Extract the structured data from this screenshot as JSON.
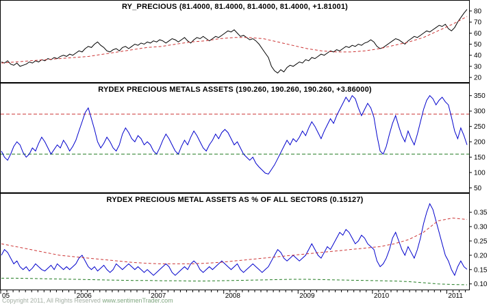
{
  "chart_data": [
    {
      "type": "line",
      "title": "RY_PRECIOUS (81.4000, 81.4000, 81.4000, 81.4000, +1.81001)",
      "ylim": [
        17,
        88
      ],
      "grid": false,
      "yticks": [
        {
          "v": 80,
          "label": "80"
        },
        {
          "v": 70,
          "label": "70"
        },
        {
          "v": 60,
          "label": "60"
        },
        {
          "v": 50,
          "label": "50"
        },
        {
          "v": 40,
          "label": "40"
        },
        {
          "v": 30,
          "label": "30"
        },
        {
          "v": 20,
          "label": "20"
        }
      ],
      "series": [
        {
          "name": "ry-precious-close",
          "color": "#000000",
          "dash": "solid",
          "values": [
            34,
            33,
            35,
            32,
            31,
            33,
            30,
            31,
            32,
            34,
            33,
            35,
            34,
            36,
            35,
            37,
            36,
            38,
            37,
            39,
            40,
            39,
            41,
            40,
            42,
            44,
            43,
            46,
            48,
            47,
            50,
            52,
            49,
            47,
            44,
            43,
            45,
            46,
            44,
            47,
            48,
            46,
            48,
            50,
            49,
            51,
            50,
            52,
            51,
            53,
            52,
            54,
            53,
            51,
            53,
            55,
            54,
            52,
            54,
            56,
            53,
            51,
            54,
            56,
            55,
            57,
            55,
            53,
            55,
            57,
            56,
            58,
            60,
            62,
            61,
            63,
            60,
            57,
            58,
            56,
            54,
            55,
            53,
            50,
            46,
            42,
            38,
            30,
            26,
            24,
            27,
            25,
            29,
            31,
            30,
            32,
            34,
            33,
            36,
            35,
            38,
            37,
            39,
            41,
            40,
            42,
            44,
            43,
            45,
            44,
            46,
            48,
            47,
            49,
            48,
            50,
            49,
            51,
            52,
            54,
            52,
            48,
            46,
            47,
            49,
            51,
            53,
            55,
            54,
            52,
            50,
            53,
            55,
            57,
            56,
            58,
            60,
            62,
            61,
            63,
            65,
            67,
            66,
            68,
            64,
            62,
            65,
            70,
            74,
            78,
            81.4
          ]
        },
        {
          "name": "moving-average",
          "color": "#cc3333",
          "dash": "dashed",
          "values": [
            33,
            34,
            35,
            36,
            37,
            38,
            39,
            41,
            43,
            45,
            47,
            48,
            50,
            52,
            53,
            55,
            56,
            56,
            55,
            52,
            49,
            46,
            44,
            43,
            43,
            44,
            46,
            49,
            52,
            56,
            62,
            68,
            75
          ]
        }
      ]
    },
    {
      "type": "line",
      "title": "RYDEX PRECIOUS METALS ASSETS (190.260, 190.260, 190.260, +3.86000)",
      "ylim": [
        40,
        385
      ],
      "grid": false,
      "yticks": [
        {
          "v": 350,
          "label": "350"
        },
        {
          "v": 300,
          "label": "300"
        },
        {
          "v": 250,
          "label": "250"
        },
        {
          "v": 200,
          "label": "200"
        },
        {
          "v": 150,
          "label": "150"
        },
        {
          "v": 100,
          "label": "100"
        },
        {
          "v": 50,
          "label": "50"
        }
      ],
      "hlines": [
        {
          "name": "upper-threshold",
          "value": 290,
          "color": "#cc3333"
        },
        {
          "name": "lower-threshold",
          "value": 160,
          "color": "#1f7a1f"
        }
      ],
      "series": [
        {
          "name": "rydex-precious-metals-assets",
          "color": "#0000cc",
          "dash": "solid",
          "values": [
            170,
            150,
            140,
            160,
            185,
            200,
            190,
            165,
            150,
            160,
            180,
            170,
            195,
            215,
            200,
            180,
            160,
            175,
            190,
            180,
            205,
            190,
            170,
            185,
            205,
            235,
            265,
            295,
            310,
            275,
            240,
            200,
            180,
            195,
            215,
            200,
            180,
            170,
            190,
            225,
            245,
            230,
            210,
            200,
            220,
            210,
            190,
            200,
            190,
            170,
            160,
            180,
            205,
            225,
            210,
            190,
            170,
            160,
            185,
            205,
            190,
            215,
            235,
            220,
            200,
            180,
            170,
            190,
            205,
            225,
            210,
            230,
            240,
            230,
            210,
            190,
            200,
            180,
            160,
            150,
            140,
            150,
            130,
            118,
            108,
            98,
            95,
            110,
            125,
            145,
            165,
            185,
            205,
            190,
            210,
            200,
            215,
            235,
            220,
            245,
            265,
            250,
            230,
            210,
            235,
            255,
            275,
            260,
            285,
            305,
            325,
            345,
            330,
            350,
            340,
            310,
            285,
            305,
            325,
            310,
            280,
            220,
            170,
            160,
            185,
            225,
            260,
            285,
            250,
            220,
            200,
            235,
            210,
            190,
            225,
            265,
            305,
            335,
            350,
            340,
            320,
            335,
            345,
            330,
            320,
            280,
            235,
            210,
            245,
            220,
            190
          ]
        }
      ]
    },
    {
      "type": "line",
      "title": "RYDEX PRECIOUS METAL ASSETS AS % OF ALL SECTORS (0.15127)",
      "ylim": [
        0.085,
        0.41
      ],
      "grid": false,
      "yticks": [
        {
          "v": 0.35,
          "label": "0.35"
        },
        {
          "v": 0.3,
          "label": "0.30"
        },
        {
          "v": 0.25,
          "label": "0.25"
        },
        {
          "v": 0.2,
          "label": "0.20"
        },
        {
          "v": 0.15,
          "label": "0.15"
        },
        {
          "v": 0.1,
          "label": "0.10"
        }
      ],
      "series": [
        {
          "name": "pct-of-all-sectors",
          "color": "#0000cc",
          "dash": "solid",
          "values": [
            0.2,
            0.22,
            0.21,
            0.19,
            0.17,
            0.18,
            0.16,
            0.15,
            0.16,
            0.145,
            0.155,
            0.17,
            0.16,
            0.15,
            0.145,
            0.155,
            0.165,
            0.15,
            0.17,
            0.16,
            0.15,
            0.16,
            0.15,
            0.16,
            0.17,
            0.19,
            0.2,
            0.18,
            0.16,
            0.15,
            0.16,
            0.145,
            0.155,
            0.165,
            0.15,
            0.14,
            0.15,
            0.17,
            0.16,
            0.15,
            0.16,
            0.17,
            0.16,
            0.15,
            0.16,
            0.15,
            0.14,
            0.15,
            0.14,
            0.13,
            0.14,
            0.15,
            0.16,
            0.17,
            0.16,
            0.14,
            0.13,
            0.14,
            0.15,
            0.16,
            0.15,
            0.17,
            0.18,
            0.17,
            0.15,
            0.14,
            0.15,
            0.16,
            0.15,
            0.16,
            0.17,
            0.18,
            0.17,
            0.16,
            0.15,
            0.16,
            0.17,
            0.15,
            0.14,
            0.15,
            0.16,
            0.17,
            0.16,
            0.15,
            0.14,
            0.15,
            0.16,
            0.18,
            0.2,
            0.22,
            0.21,
            0.19,
            0.18,
            0.19,
            0.2,
            0.19,
            0.18,
            0.19,
            0.2,
            0.22,
            0.24,
            0.22,
            0.2,
            0.19,
            0.21,
            0.23,
            0.22,
            0.24,
            0.26,
            0.28,
            0.27,
            0.29,
            0.28,
            0.26,
            0.24,
            0.25,
            0.27,
            0.26,
            0.24,
            0.23,
            0.22,
            0.18,
            0.16,
            0.17,
            0.19,
            0.22,
            0.26,
            0.28,
            0.25,
            0.22,
            0.2,
            0.23,
            0.21,
            0.19,
            0.22,
            0.26,
            0.31,
            0.35,
            0.38,
            0.36,
            0.32,
            0.28,
            0.24,
            0.2,
            0.18,
            0.15,
            0.13,
            0.16,
            0.18,
            0.16,
            0.151
          ]
        },
        {
          "name": "upper-band-average",
          "color": "#cc3333",
          "dash": "dashed",
          "values": [
            0.24,
            0.23,
            0.22,
            0.21,
            0.2,
            0.195,
            0.19,
            0.185,
            0.18,
            0.175,
            0.172,
            0.17,
            0.17,
            0.17,
            0.172,
            0.175,
            0.18,
            0.185,
            0.19,
            0.195,
            0.2,
            0.205,
            0.21,
            0.215,
            0.22,
            0.225,
            0.23,
            0.24,
            0.255,
            0.28,
            0.32,
            0.33,
            0.325
          ]
        },
        {
          "name": "lower-band-average",
          "color": "#1f7a1f",
          "dash": "dashed",
          "values": [
            0.12,
            0.12,
            0.119,
            0.118,
            0.117,
            0.116,
            0.115,
            0.114,
            0.113,
            0.112,
            0.112,
            0.111,
            0.111,
            0.11,
            0.11,
            0.111,
            0.112,
            0.113,
            0.114,
            0.115,
            0.116,
            0.116,
            0.115,
            0.114,
            0.113,
            0.112,
            0.111,
            0.11,
            0.108,
            0.104,
            0.1,
            0.098,
            0.097
          ]
        }
      ]
    }
  ],
  "x_axis": {
    "start": 2005.0,
    "end": 2011.3,
    "labels": [
      {
        "text": "05",
        "year": 2005
      },
      {
        "text": "2006",
        "year": 2006
      },
      {
        "text": "2007",
        "year": 2007
      },
      {
        "text": "2008",
        "year": 2008
      },
      {
        "text": "2009",
        "year": 2009
      },
      {
        "text": "2010",
        "year": 2010
      },
      {
        "text": "2011",
        "year": 2011
      }
    ]
  },
  "footer": {
    "copyright": "Copyright 2011, All Rights Reserved",
    "website": "www.sentimenTrader.com"
  },
  "colors": {
    "price_line": "#000000",
    "assets_line": "#0000cc",
    "average_line": "#cc3333",
    "threshold_line": "#1f7a1f",
    "background": "#ffffff"
  }
}
